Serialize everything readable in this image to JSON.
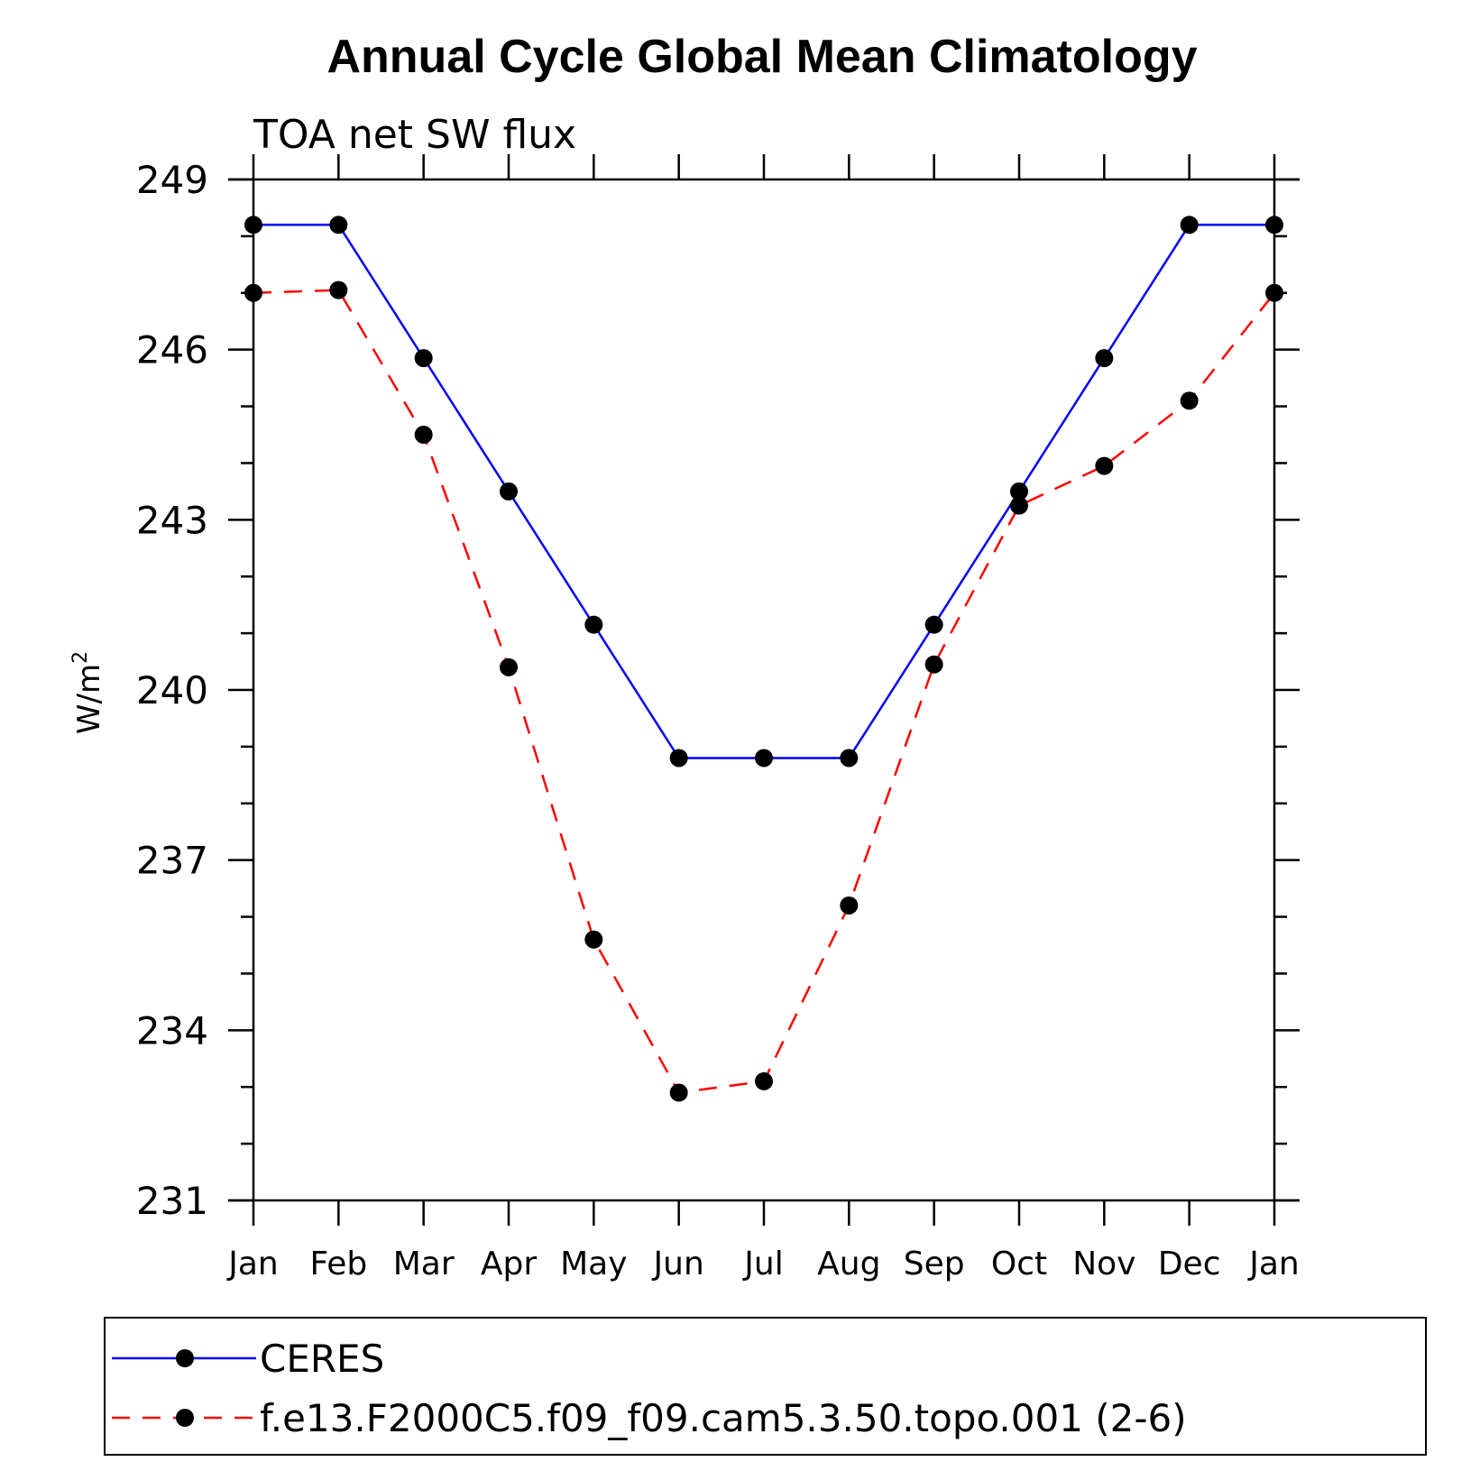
{
  "chart_data": {
    "type": "line",
    "title": "Annual Cycle Global Mean Climatology",
    "subtitle": "TOA net SW flux",
    "xlabel": "",
    "ylabel": "W/m",
    "ylabel_superscript": "2",
    "categories": [
      "Jan",
      "Feb",
      "Mar",
      "Apr",
      "May",
      "Jun",
      "Jul",
      "Aug",
      "Sep",
      "Oct",
      "Nov",
      "Dec",
      "Jan"
    ],
    "ylim": [
      231,
      249
    ],
    "yticks": [
      "231",
      "234",
      "237",
      "240",
      "243",
      "246",
      "249"
    ],
    "ytick_values": [
      231,
      234,
      237,
      240,
      243,
      246,
      249
    ],
    "grid": false,
    "legend_position": "bottom",
    "series": [
      {
        "name": "CERES",
        "color": "#0000ff",
        "dash": "solid",
        "marker_color": "#000000",
        "values": [
          248.2,
          248.2,
          245.85,
          243.5,
          241.15,
          238.8,
          238.8,
          238.8,
          241.15,
          243.5,
          245.85,
          248.2,
          248.2
        ]
      },
      {
        "name": "f.e13.F2000C5.f09_f09.cam5.3.50.topo.001 (2-6)",
        "color": "#ff0000",
        "dash": "dashed",
        "marker_color": "#000000",
        "values": [
          247.0,
          247.05,
          244.5,
          240.4,
          235.6,
          232.9,
          233.1,
          236.2,
          240.45,
          243.25,
          243.95,
          245.1,
          247.0
        ]
      }
    ]
  }
}
